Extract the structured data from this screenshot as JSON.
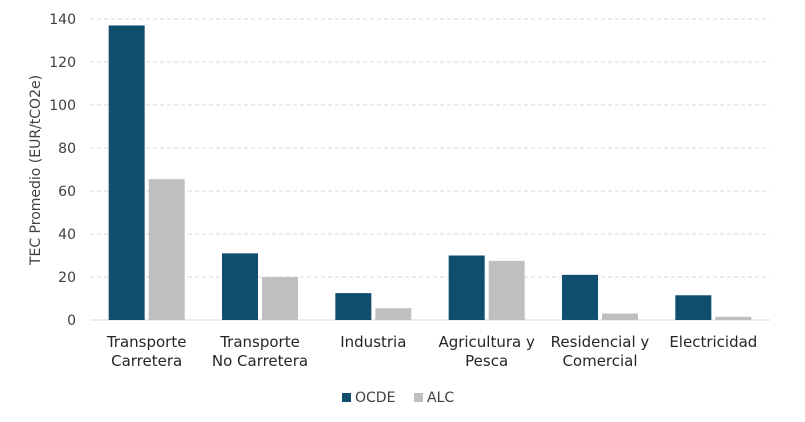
{
  "chart_data": {
    "type": "bar",
    "y_label": "TEC Promedio (EUR/tCO2e)",
    "categories": [
      [
        "Transporte",
        "Carretera"
      ],
      [
        "Transporte",
        "No Carretera"
      ],
      [
        "Industria"
      ],
      [
        "Agricultura y",
        "Pesca"
      ],
      [
        "Residencial y",
        "Comercial"
      ],
      [
        "Electricidad"
      ]
    ],
    "series": [
      {
        "name": "OCDE",
        "color": "#104e70",
        "values": [
          137,
          31,
          12.5,
          30,
          21,
          11.5
        ]
      },
      {
        "name": "ALC",
        "color": "#bfbfbf",
        "values": [
          65.5,
          20,
          5.5,
          27.5,
          3,
          1.5
        ]
      }
    ],
    "ylim": [
      0,
      140
    ],
    "yticks": [
      0,
      20,
      40,
      60,
      80,
      100,
      120,
      140
    ],
    "grid": true,
    "legend": "bottom"
  }
}
